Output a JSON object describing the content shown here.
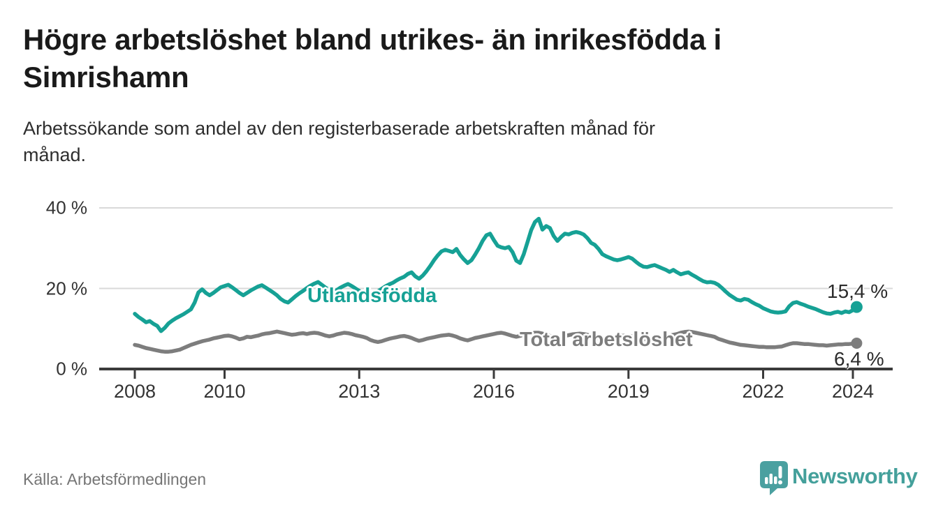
{
  "header": {
    "title_lines": [
      "Högre arbetslöshet bland utrikes- än inrikesfödda i",
      "Simrishamn"
    ],
    "subtitle_lines": [
      "Arbetssökande som andel av den registerbaserade arbetskraften månad för",
      "månad."
    ]
  },
  "chart_data": {
    "type": "line",
    "title": "Högre arbetslöshet bland utrikes- än inrikesfödda i Simrishamn",
    "subtitle": "Arbetssökande som andel av den registerbaserade arbetskraften månad för månad.",
    "unit": "%",
    "grid": "horizontal",
    "legend_position": "inline-labels",
    "x_start": 2008.0,
    "x_step_months": 1,
    "x_end": "2024-02",
    "ylim": [
      0,
      40
    ],
    "y_ticks": [
      {
        "value": 0,
        "label": "0 %"
      },
      {
        "value": 20,
        "label": "20 %"
      },
      {
        "value": 40,
        "label": "40 %"
      }
    ],
    "x_tick_years": [
      2008,
      2010,
      2013,
      2016,
      2019,
      2022,
      2024
    ],
    "x_tick_labels": [
      "2008",
      "2010",
      "2013",
      "2016",
      "2019",
      "2022",
      "2024"
    ],
    "series": [
      {
        "name": "Utlandsfödda",
        "color": "#16a195",
        "end_value": 15.4,
        "end_label": "15,4 %",
        "values": [
          13.7,
          12.9,
          12.3,
          11.6,
          11.9,
          11.2,
          10.7,
          9.4,
          10.2,
          11.3,
          12.0,
          12.6,
          13.1,
          13.6,
          14.2,
          14.8,
          16.5,
          19.0,
          19.8,
          18.9,
          18.3,
          18.9,
          19.6,
          20.3,
          20.6,
          20.9,
          20.3,
          19.6,
          18.9,
          18.3,
          18.9,
          19.5,
          20.0,
          20.5,
          20.8,
          20.2,
          19.6,
          19.0,
          18.3,
          17.4,
          16.8,
          16.5,
          17.3,
          18.1,
          18.8,
          19.4,
          20.1,
          20.7,
          21.2,
          21.6,
          20.9,
          20.2,
          19.6,
          19.1,
          19.6,
          20.2,
          20.7,
          21.1,
          20.6,
          20.0,
          19.4,
          18.9,
          18.4,
          18.2,
          18.7,
          19.3,
          19.9,
          20.5,
          21.0,
          21.4,
          22.0,
          22.5,
          22.9,
          23.6,
          24.0,
          23.0,
          22.4,
          23.2,
          24.3,
          25.6,
          27.0,
          28.2,
          29.2,
          29.6,
          29.3,
          29.0,
          29.8,
          28.3,
          27.2,
          26.3,
          27.0,
          28.4,
          30.0,
          31.8,
          33.2,
          33.6,
          32.0,
          30.6,
          30.2,
          30.0,
          30.3,
          29.0,
          26.9,
          26.3,
          28.5,
          31.5,
          34.5,
          36.5,
          37.3,
          34.6,
          35.5,
          35.0,
          33.0,
          31.8,
          32.8,
          33.6,
          33.4,
          33.8,
          34.0,
          33.8,
          33.4,
          32.5,
          31.3,
          30.8,
          29.8,
          28.5,
          28.0,
          27.6,
          27.2,
          27.0,
          27.2,
          27.5,
          27.8,
          27.4,
          26.6,
          25.9,
          25.4,
          25.3,
          25.6,
          25.8,
          25.4,
          25.0,
          24.6,
          24.1,
          24.6,
          24.0,
          23.5,
          23.8,
          24.0,
          23.4,
          22.9,
          22.3,
          21.8,
          21.5,
          21.6,
          21.4,
          20.9,
          20.1,
          19.2,
          18.4,
          17.8,
          17.2,
          17.0,
          17.4,
          17.2,
          16.6,
          16.1,
          15.7,
          15.1,
          14.7,
          14.3,
          14.1,
          14.0,
          14.1,
          14.3,
          15.6,
          16.4,
          16.6,
          16.2,
          15.9,
          15.5,
          15.2,
          14.9,
          14.5,
          14.1,
          13.8,
          13.7,
          14.0,
          14.2,
          13.9,
          14.3,
          14.1,
          14.6,
          15.4
        ]
      },
      {
        "name": "Total arbetslöshet",
        "color": "#7d7d7d",
        "end_value": 6.4,
        "end_label": "6,4 %",
        "values": [
          6.0,
          5.8,
          5.5,
          5.2,
          5.0,
          4.8,
          4.6,
          4.4,
          4.3,
          4.3,
          4.4,
          4.6,
          4.8,
          5.2,
          5.6,
          6.0,
          6.3,
          6.6,
          6.9,
          7.1,
          7.3,
          7.6,
          7.8,
          8.0,
          8.2,
          8.3,
          8.1,
          7.8,
          7.4,
          7.6,
          8.0,
          7.9,
          8.1,
          8.3,
          8.6,
          8.8,
          8.9,
          9.1,
          9.3,
          9.1,
          8.9,
          8.7,
          8.5,
          8.6,
          8.8,
          8.9,
          8.7,
          8.9,
          9.0,
          8.9,
          8.6,
          8.3,
          8.1,
          8.3,
          8.6,
          8.8,
          9.0,
          8.9,
          8.7,
          8.4,
          8.2,
          8.0,
          7.7,
          7.2,
          6.9,
          6.7,
          6.9,
          7.2,
          7.5,
          7.7,
          7.9,
          8.1,
          8.2,
          8.0,
          7.7,
          7.3,
          7.0,
          7.2,
          7.5,
          7.7,
          7.9,
          8.1,
          8.3,
          8.4,
          8.5,
          8.3,
          8.0,
          7.6,
          7.3,
          7.1,
          7.4,
          7.7,
          7.9,
          8.1,
          8.3,
          8.5,
          8.7,
          8.9,
          9.0,
          8.8,
          8.5,
          8.2,
          8.0,
          8.2,
          8.5,
          8.7,
          8.9,
          9.0,
          9.0,
          8.8,
          8.5,
          8.2,
          7.9,
          7.7,
          7.9,
          8.2,
          8.4,
          8.6,
          8.7,
          8.8,
          8.7,
          8.5,
          8.2,
          7.9,
          7.6,
          7.4,
          7.6,
          7.8,
          8.0,
          8.1,
          8.2,
          8.3,
          8.3,
          8.1,
          7.9,
          7.6,
          7.4,
          7.3,
          7.5,
          7.7,
          7.9,
          8.0,
          8.2,
          8.3,
          8.5,
          8.7,
          9.0,
          9.2,
          9.3,
          9.2,
          9.0,
          8.8,
          8.6,
          8.4,
          8.2,
          8.0,
          7.5,
          7.2,
          6.9,
          6.6,
          6.4,
          6.2,
          6.0,
          5.9,
          5.8,
          5.7,
          5.6,
          5.5,
          5.5,
          5.4,
          5.4,
          5.4,
          5.5,
          5.6,
          5.9,
          6.2,
          6.4,
          6.4,
          6.3,
          6.2,
          6.2,
          6.1,
          6.0,
          5.9,
          5.9,
          5.8,
          5.9,
          6.0,
          6.1,
          6.1,
          6.2,
          6.2,
          6.3,
          6.4
        ]
      }
    ]
  },
  "footer": {
    "source": "Källa: Arbetsförmedlingen",
    "brand": "Newsworthy"
  },
  "colors": {
    "accent_teal": "#16a195",
    "line_gray": "#7d7d7d",
    "brand_teal": "#4aa0a0",
    "gridline": "#d9d9d9",
    "axis": "#3b3b3b",
    "title_text": "#1a1a1a",
    "muted_text": "#757575"
  }
}
